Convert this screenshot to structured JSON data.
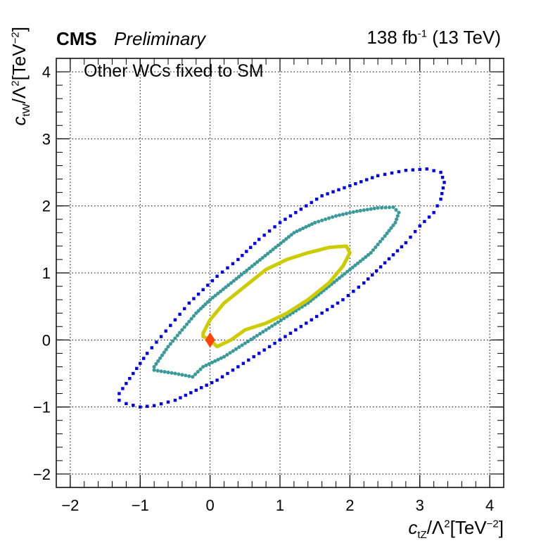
{
  "header": {
    "cms": "CMS",
    "preliminary": "Preliminary",
    "lumi_value": "138 fb",
    "lumi_exp": "-1",
    "energy": "(13 TeV)"
  },
  "annotation": "Other WCs fixed to SM",
  "axes": {
    "x": {
      "var": "c",
      "sub": "tZ",
      "mid": "/Λ",
      "sq": "2",
      "unit": "[TeV",
      "exp": "−2",
      "close": "]"
    },
    "y": {
      "var": "c",
      "sub": "tW",
      "mid": "/Λ",
      "sq": "2",
      "unit": "[TeV",
      "exp": "−2",
      "close": "]"
    }
  },
  "chart_data": {
    "type": "scatter",
    "xlim": [
      -2.2,
      4.2
    ],
    "ylim": [
      -2.2,
      4.2
    ],
    "xticks": [
      "−2",
      "−1",
      "0",
      "1",
      "2",
      "3",
      "4"
    ],
    "yticks": [
      "−2",
      "−1",
      "0",
      "1",
      "2",
      "3",
      "4"
    ],
    "xtick_values": [
      -2,
      -1,
      0,
      1,
      2,
      3,
      4
    ],
    "ytick_values": [
      -2,
      -1,
      0,
      1,
      2,
      3,
      4
    ],
    "grid": true,
    "colors": {
      "outer": "#0000ee",
      "middle": "#3a9a9a",
      "inner": "#cccc00",
      "marker": "#ff4400"
    },
    "series": [
      {
        "style": "dots",
        "color": "#0000ee",
        "closed": true,
        "points": [
          [
            -1.3,
            -0.8
          ],
          [
            -1.1,
            -0.5
          ],
          [
            -0.9,
            -0.2
          ],
          [
            -0.7,
            0.05
          ],
          [
            -0.5,
            0.3
          ],
          [
            -0.3,
            0.55
          ],
          [
            -0.1,
            0.75
          ],
          [
            0.1,
            0.95
          ],
          [
            0.4,
            1.2
          ],
          [
            0.7,
            1.5
          ],
          [
            1.0,
            1.75
          ],
          [
            1.3,
            1.95
          ],
          [
            1.6,
            2.15
          ],
          [
            2.0,
            2.3
          ],
          [
            2.4,
            2.45
          ],
          [
            2.8,
            2.53
          ],
          [
            3.1,
            2.55
          ],
          [
            3.3,
            2.5
          ],
          [
            3.35,
            2.35
          ],
          [
            3.3,
            2.1
          ],
          [
            3.2,
            1.9
          ],
          [
            3.0,
            1.7
          ],
          [
            2.8,
            1.45
          ],
          [
            2.5,
            1.15
          ],
          [
            2.2,
            0.85
          ],
          [
            1.9,
            0.6
          ],
          [
            1.6,
            0.4
          ],
          [
            1.3,
            0.2
          ],
          [
            1.0,
            0.0
          ],
          [
            0.7,
            -0.2
          ],
          [
            0.4,
            -0.4
          ],
          [
            0.1,
            -0.6
          ],
          [
            -0.2,
            -0.75
          ],
          [
            -0.5,
            -0.9
          ],
          [
            -0.8,
            -0.98
          ],
          [
            -1.0,
            -1.0
          ],
          [
            -1.2,
            -0.95
          ],
          [
            -1.3,
            -0.9
          ]
        ]
      },
      {
        "style": "dots",
        "color": "#3a9a9a",
        "closed": true,
        "points": [
          [
            -0.8,
            -0.4
          ],
          [
            -0.6,
            -0.1
          ],
          [
            -0.4,
            0.15
          ],
          [
            -0.2,
            0.4
          ],
          [
            0.0,
            0.6
          ],
          [
            0.3,
            0.85
          ],
          [
            0.6,
            1.1
          ],
          [
            0.9,
            1.35
          ],
          [
            1.2,
            1.6
          ],
          [
            1.5,
            1.75
          ],
          [
            1.8,
            1.85
          ],
          [
            2.1,
            1.92
          ],
          [
            2.4,
            1.97
          ],
          [
            2.62,
            1.98
          ],
          [
            2.7,
            1.9
          ],
          [
            2.65,
            1.75
          ],
          [
            2.5,
            1.55
          ],
          [
            2.3,
            1.3
          ],
          [
            2.0,
            1.05
          ],
          [
            1.7,
            0.8
          ],
          [
            1.4,
            0.55
          ],
          [
            1.1,
            0.35
          ],
          [
            0.8,
            0.15
          ],
          [
            0.5,
            -0.05
          ],
          [
            0.2,
            -0.25
          ],
          [
            -0.1,
            -0.4
          ],
          [
            -0.25,
            -0.55
          ],
          [
            -0.5,
            -0.5
          ],
          [
            -0.8,
            -0.45
          ]
        ]
      },
      {
        "style": "line",
        "color": "#cccc00",
        "closed": true,
        "points": [
          [
            -0.1,
            0.1
          ],
          [
            0.0,
            0.3
          ],
          [
            0.2,
            0.55
          ],
          [
            0.5,
            0.8
          ],
          [
            0.8,
            1.05
          ],
          [
            1.1,
            1.2
          ],
          [
            1.4,
            1.3
          ],
          [
            1.7,
            1.38
          ],
          [
            1.95,
            1.4
          ],
          [
            2.0,
            1.3
          ],
          [
            1.9,
            1.1
          ],
          [
            1.7,
            0.85
          ],
          [
            1.4,
            0.6
          ],
          [
            1.1,
            0.4
          ],
          [
            0.8,
            0.25
          ],
          [
            0.5,
            0.15
          ],
          [
            0.3,
            0.0
          ],
          [
            0.1,
            -0.1
          ],
          [
            0.0,
            0.0
          ],
          [
            -0.1,
            0.05
          ]
        ]
      },
      {
        "style": "marker",
        "color": "#ff4400",
        "closed": false,
        "points": [
          [
            0.0,
            0.0
          ]
        ]
      }
    ]
  }
}
